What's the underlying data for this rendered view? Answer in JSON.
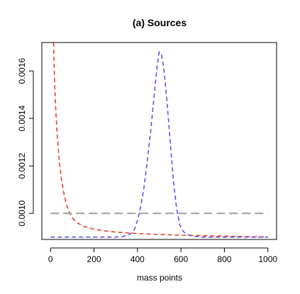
{
  "chart_data": {
    "type": "line",
    "title": "(a)  Sources",
    "xlabel": "mass points",
    "ylabel": "",
    "xlim": [
      -40,
      1040
    ],
    "ylim": [
      0.00089,
      0.00172
    ],
    "xticks": [
      0,
      200,
      400,
      600,
      800,
      1000
    ],
    "xtick_labels": [
      "0",
      "200",
      "400",
      "600",
      "800",
      "1000"
    ],
    "yticks": [
      0.001,
      0.0012,
      0.0014,
      0.0016
    ],
    "ytick_labels": [
      "0.0010",
      "0.0012",
      "0.0014",
      "0.0016"
    ],
    "grid": false,
    "legend": "none",
    "series": [
      {
        "color": "#e8412a",
        "dash": "dashed",
        "points": [
          [
            14,
            0.00172
          ],
          [
            16,
            0.00164
          ],
          [
            20,
            0.00152
          ],
          [
            25,
            0.00142
          ],
          [
            30,
            0.00134
          ],
          [
            40,
            0.00122
          ],
          [
            50,
            0.001145
          ],
          [
            60,
            0.00109
          ],
          [
            70,
            0.00105
          ],
          [
            80,
            0.00102
          ],
          [
            90,
            0.000998
          ],
          [
            100,
            0.000982
          ],
          [
            120,
            0.000962
          ],
          [
            150,
            0.000946
          ],
          [
            200,
            0.000933
          ],
          [
            250,
            0.000926
          ],
          [
            300,
            0.000921
          ],
          [
            400,
            0.000915
          ],
          [
            500,
            0.000911
          ],
          [
            600,
            0.000908
          ],
          [
            700,
            0.000906
          ],
          [
            800,
            0.000904
          ],
          [
            900,
            0.000902
          ],
          [
            1000,
            0.0009
          ]
        ]
      },
      {
        "color": "#5a55e8",
        "dash": "dashed",
        "points": [
          [
            0,
            0.0009
          ],
          [
            100,
            0.0009
          ],
          [
            200,
            0.0009
          ],
          [
            300,
            0.0009
          ],
          [
            330,
            0.000902
          ],
          [
            350,
            0.000906
          ],
          [
            370,
            0.000915
          ],
          [
            385,
            0.00093
          ],
          [
            400,
            0.00097
          ],
          [
            415,
            0.00103
          ],
          [
            430,
            0.00111
          ],
          [
            445,
            0.00122
          ],
          [
            460,
            0.00134
          ],
          [
            475,
            0.00148
          ],
          [
            490,
            0.00162
          ],
          [
            500,
            0.00168
          ],
          [
            510,
            0.00167
          ],
          [
            520,
            0.00162
          ],
          [
            535,
            0.00148
          ],
          [
            550,
            0.00131
          ],
          [
            565,
            0.00114
          ],
          [
            580,
            0.00102
          ],
          [
            595,
            0.00095
          ],
          [
            610,
            0.000925
          ],
          [
            625,
            0.000912
          ],
          [
            650,
            0.000904
          ],
          [
            700,
            0.0009
          ],
          [
            800,
            0.0009
          ],
          [
            900,
            0.0009
          ],
          [
            1000,
            0.0009
          ]
        ]
      },
      {
        "color": "#a9a9a9",
        "dash": "long-dashed",
        "points": [
          [
            0,
            0.001
          ],
          [
            1000,
            0.001
          ]
        ]
      }
    ]
  }
}
